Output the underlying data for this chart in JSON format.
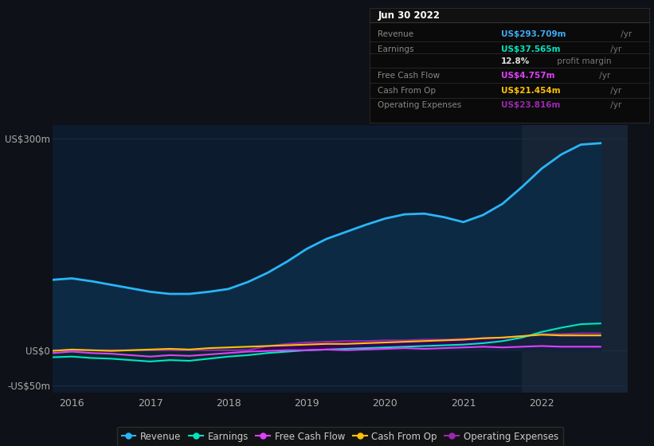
{
  "background_color": "#0e1117",
  "plot_bg_color": "#0d1b2e",
  "grid_color": "#1e2d3d",
  "highlight_bg": "#162436",
  "ylim": [
    -60,
    320
  ],
  "yticks": [
    -50,
    0,
    300
  ],
  "ytick_labels": [
    "-US$50m",
    "US$0",
    "US$300m"
  ],
  "xtick_labels": [
    "2016",
    "2017",
    "2018",
    "2019",
    "2020",
    "2021",
    "2022"
  ],
  "info_box": {
    "title": "Jun 30 2022",
    "rows": [
      {
        "label": "Revenue",
        "value": "US$293.709m",
        "value_color": "#3fa9f5",
        "suffix": " /yr"
      },
      {
        "label": "Earnings",
        "value": "US$37.565m",
        "value_color": "#00e5c0",
        "suffix": " /yr"
      },
      {
        "label": "",
        "value": "12.8%",
        "value_color": "#e0e0e0",
        "suffix": " profit margin"
      },
      {
        "label": "Free Cash Flow",
        "value": "US$4.757m",
        "value_color": "#e040fb",
        "suffix": " /yr"
      },
      {
        "label": "Cash From Op",
        "value": "US$21.454m",
        "value_color": "#ffc107",
        "suffix": " /yr"
      },
      {
        "label": "Operating Expenses",
        "value": "US$23.816m",
        "value_color": "#9c27b0",
        "suffix": " /yr"
      }
    ]
  },
  "series": {
    "revenue": {
      "color": "#29b6f6",
      "fill_color": "#0d2a45",
      "label": "Revenue",
      "data_x": [
        2015.75,
        2016.0,
        2016.25,
        2016.5,
        2016.75,
        2017.0,
        2017.25,
        2017.5,
        2017.75,
        2018.0,
        2018.25,
        2018.5,
        2018.75,
        2019.0,
        2019.25,
        2019.5,
        2019.75,
        2020.0,
        2020.25,
        2020.5,
        2020.75,
        2021.0,
        2021.25,
        2021.5,
        2021.75,
        2022.0,
        2022.25,
        2022.5,
        2022.75
      ],
      "data_y": [
        100,
        102,
        98,
        93,
        88,
        83,
        80,
        80,
        83,
        87,
        97,
        110,
        126,
        144,
        158,
        168,
        178,
        187,
        193,
        194,
        189,
        182,
        192,
        208,
        232,
        258,
        278,
        292,
        294
      ]
    },
    "earnings": {
      "color": "#00e5c0",
      "fill_color": "#00332a",
      "label": "Earnings",
      "data_x": [
        2015.75,
        2016.0,
        2016.25,
        2016.5,
        2016.75,
        2017.0,
        2017.25,
        2017.5,
        2017.75,
        2018.0,
        2018.25,
        2018.5,
        2018.75,
        2019.0,
        2019.25,
        2019.5,
        2019.75,
        2020.0,
        2020.25,
        2020.5,
        2020.75,
        2021.0,
        2021.25,
        2021.5,
        2021.75,
        2022.0,
        2022.25,
        2022.5,
        2022.75
      ],
      "data_y": [
        -10,
        -9,
        -11,
        -12,
        -14,
        -16,
        -14,
        -15,
        -12,
        -9,
        -7,
        -4,
        -2,
        0,
        1,
        2,
        3,
        4,
        5,
        6,
        7,
        8,
        10,
        13,
        18,
        26,
        32,
        37,
        38
      ]
    },
    "free_cash_flow": {
      "color": "#e040fb",
      "label": "Free Cash Flow",
      "data_x": [
        2015.75,
        2016.0,
        2016.25,
        2016.5,
        2016.75,
        2017.0,
        2017.25,
        2017.5,
        2017.75,
        2018.0,
        2018.25,
        2018.5,
        2018.75,
        2019.0,
        2019.25,
        2019.5,
        2019.75,
        2020.0,
        2020.25,
        2020.5,
        2020.75,
        2021.0,
        2021.25,
        2021.5,
        2021.75,
        2022.0,
        2022.25,
        2022.5,
        2022.75
      ],
      "data_y": [
        -4,
        -2,
        -4,
        -5,
        -7,
        -9,
        -7,
        -8,
        -6,
        -4,
        -2,
        -1,
        0,
        0,
        1,
        0,
        1,
        2,
        3,
        2,
        3,
        4,
        5,
        4,
        5,
        6,
        5,
        5,
        5
      ]
    },
    "cash_from_op": {
      "color": "#ffc107",
      "label": "Cash From Op",
      "data_x": [
        2015.75,
        2016.0,
        2016.25,
        2016.5,
        2016.75,
        2017.0,
        2017.25,
        2017.5,
        2017.75,
        2018.0,
        2018.25,
        2018.5,
        2018.75,
        2019.0,
        2019.25,
        2019.5,
        2019.75,
        2020.0,
        2020.25,
        2020.5,
        2020.75,
        2021.0,
        2021.25,
        2021.5,
        2021.75,
        2022.0,
        2022.25,
        2022.5,
        2022.75
      ],
      "data_y": [
        -1,
        1,
        0,
        -1,
        0,
        1,
        2,
        1,
        3,
        4,
        5,
        6,
        7,
        8,
        9,
        9,
        10,
        11,
        12,
        13,
        14,
        15,
        17,
        18,
        20,
        22,
        21,
        21,
        21
      ]
    },
    "operating_expenses": {
      "color": "#9c27b0",
      "fill_color": "#3a0060",
      "label": "Operating Expenses",
      "data_x": [
        2015.75,
        2016.0,
        2016.25,
        2016.5,
        2016.75,
        2017.0,
        2017.25,
        2017.5,
        2017.75,
        2018.0,
        2018.25,
        2018.5,
        2018.75,
        2019.0,
        2019.25,
        2019.5,
        2019.75,
        2020.0,
        2020.25,
        2020.5,
        2020.75,
        2021.0,
        2021.25,
        2021.5,
        2021.75,
        2022.0,
        2022.25,
        2022.5,
        2022.75
      ],
      "data_y": [
        0,
        0,
        0,
        0,
        0,
        0,
        0,
        0,
        0,
        0,
        0,
        6,
        9,
        11,
        12,
        13,
        13,
        14,
        14,
        15,
        15,
        16,
        17,
        18,
        20,
        23,
        23,
        24,
        24
      ]
    }
  }
}
